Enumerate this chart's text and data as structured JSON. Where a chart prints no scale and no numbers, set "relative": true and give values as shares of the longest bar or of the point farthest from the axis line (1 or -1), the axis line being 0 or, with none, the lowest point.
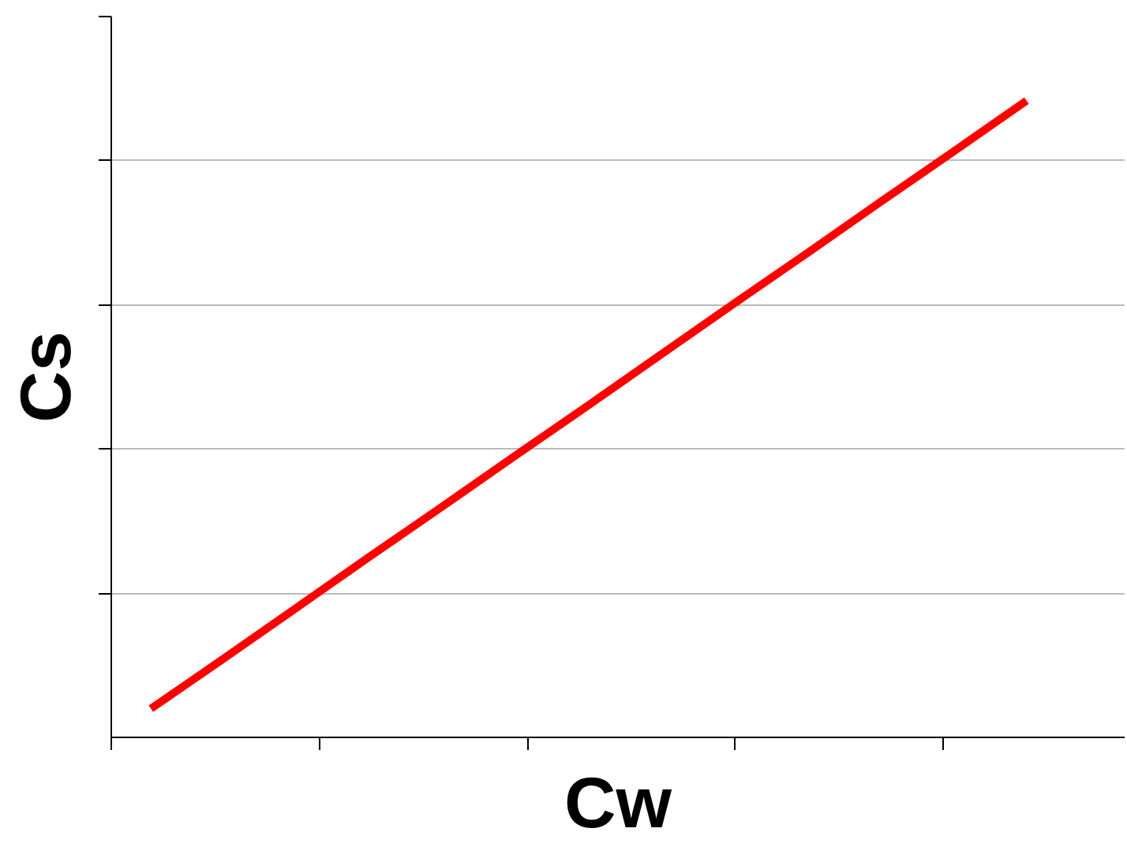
{
  "chart_data": {
    "type": "line",
    "relative": true,
    "xlabel": "Cw",
    "ylabel": "Cs",
    "categories": [
      null,
      null,
      null,
      null,
      null,
      null,
      null,
      null,
      null,
      null,
      null,
      null,
      null
    ],
    "series": [
      {
        "color": "#ff0000",
        "values": [
          0.045,
          0.124,
          0.204,
          0.284,
          0.363,
          0.443,
          0.522,
          0.602,
          0.682,
          0.761,
          0.841,
          0.92,
          1.0
        ]
      }
    ],
    "grid": "y",
    "marker": "none",
    "line_style": "solid"
  }
}
